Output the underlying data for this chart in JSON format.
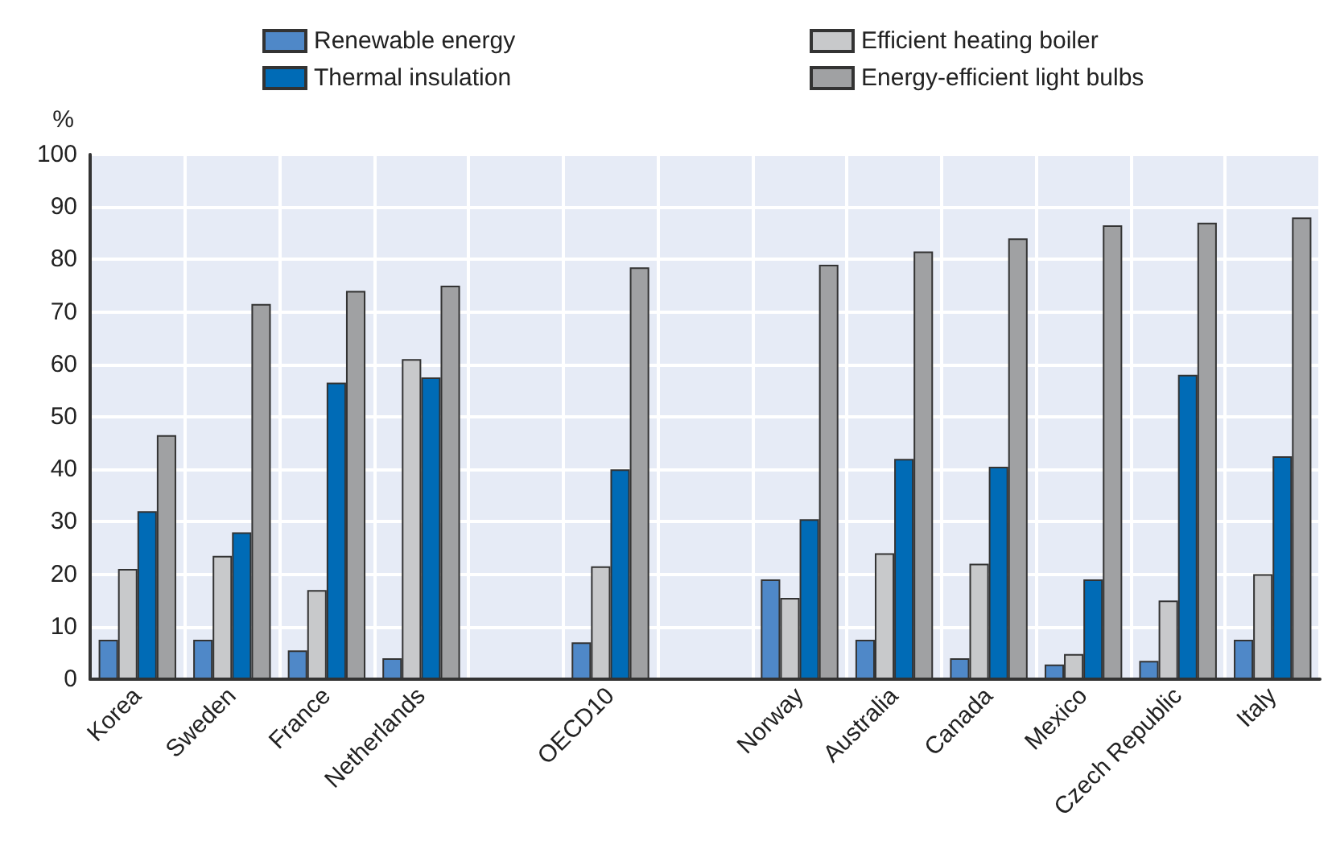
{
  "chart_data": {
    "type": "bar",
    "ylabel": "%",
    "categories": [
      "Korea",
      "Sweden",
      "France",
      "Netherlands",
      null,
      "OECD10",
      null,
      "Norway",
      "Australia",
      "Canada",
      "Mexico",
      "Czech Republic",
      "Italy"
    ],
    "series": [
      {
        "name": "Renewable energy",
        "color": "#4f88c8",
        "values": [
          7.5,
          7.5,
          5.5,
          4,
          null,
          7,
          null,
          19,
          7.5,
          4,
          2.8,
          3.5,
          7.5
        ]
      },
      {
        "name": "Efficient heating boiler",
        "color": "#c8c9cb",
        "values": [
          21,
          23.5,
          17,
          61,
          null,
          21.5,
          null,
          15.5,
          24,
          22,
          4.8,
          15,
          20
        ]
      },
      {
        "name": "Thermal insulation",
        "color": "#006bb6",
        "values": [
          32,
          28,
          56.5,
          57.5,
          null,
          40,
          null,
          30.5,
          42,
          40.5,
          19,
          58,
          42.5
        ]
      },
      {
        "name": "Energy-efficient light bulbs",
        "color": "#a0a1a3",
        "values": [
          46.5,
          71.5,
          74,
          75,
          null,
          78.5,
          null,
          79,
          81.5,
          84,
          86.5,
          87,
          88
        ]
      }
    ],
    "ylim": [
      0,
      100
    ],
    "yticks": [
      0,
      10,
      20,
      30,
      40,
      50,
      60,
      70,
      80,
      90,
      100
    ],
    "grid": true,
    "legend": "top"
  }
}
